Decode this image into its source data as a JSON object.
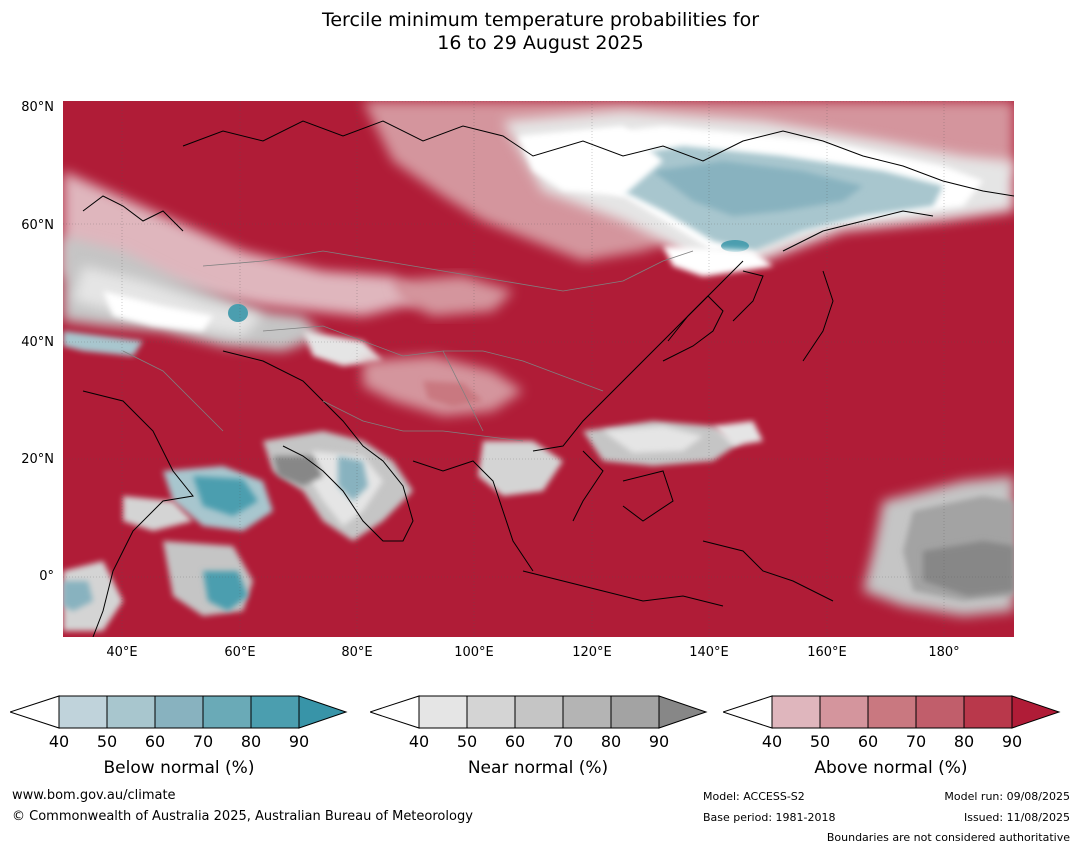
{
  "title": {
    "line1": "Tercile minimum temperature probabilities for",
    "line2": "16 to 29 August 2025"
  },
  "map": {
    "lat_labels": [
      "80°N",
      "60°N",
      "40°N",
      "20°N",
      "0°"
    ],
    "lon_labels": [
      "40°E",
      "60°E",
      "80°E",
      "100°E",
      "120°E",
      "140°E",
      "160°E",
      "180°"
    ],
    "lat_range": [
      -10,
      82
    ],
    "lon_range": [
      30,
      192
    ]
  },
  "legends": [
    {
      "title": "Below normal (%)",
      "ticks": [
        "40",
        "50",
        "60",
        "70",
        "80",
        "90"
      ],
      "colors": [
        "#c0d3db",
        "#a8c6ce",
        "#88b2bf",
        "#6aaab7",
        "#4b9eaf",
        "#3894a8"
      ]
    },
    {
      "title": "Near normal (%)",
      "ticks": [
        "40",
        "50",
        "60",
        "70",
        "80",
        "90"
      ],
      "colors": [
        "#e5e5e5",
        "#d4d4d4",
        "#c5c5c5",
        "#b4b4b4",
        "#a3a3a3",
        "#878787"
      ]
    },
    {
      "title": "Above normal (%)",
      "ticks": [
        "40",
        "50",
        "60",
        "70",
        "80",
        "90"
      ],
      "colors": [
        "#dfb6bd",
        "#d4959d",
        "#c97880",
        "#c15e6b",
        "#b9384b",
        "#b01c37"
      ]
    }
  ],
  "footer": {
    "url": "www.bom.gov.au/climate",
    "copyright": "© Commonwealth of Australia 2025, Australian Bureau of Meteorology",
    "model": "Model: ACCESS-S2",
    "base_period": "Base period: 1981-2018",
    "model_run": "Model run: 09/08/2025",
    "issued": "Issued: 11/08/2025",
    "disclaimer": "Boundaries are not considered authoritative"
  }
}
